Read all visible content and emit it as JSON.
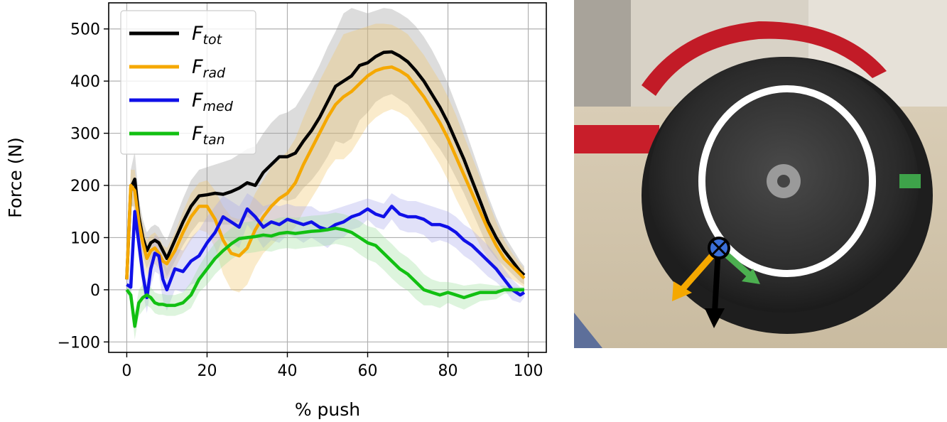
{
  "chart_data": {
    "type": "line",
    "title": "",
    "xlabel": "% push",
    "ylabel": "Force (N)",
    "xlim": [
      -4.5,
      104.5
    ],
    "ylim": [
      -120,
      550
    ],
    "xticks": [
      0,
      20,
      40,
      60,
      80,
      100
    ],
    "yticks": [
      -100,
      0,
      100,
      200,
      300,
      400,
      500
    ],
    "xtick_labels": [
      "0",
      "20",
      "40",
      "60",
      "80",
      "100"
    ],
    "ytick_labels": [
      "−100",
      "0",
      "100",
      "200",
      "300",
      "400",
      "500"
    ],
    "grid": true,
    "legend_position": "top-left",
    "series": [
      {
        "name": "F",
        "name_sub": "tot",
        "color": "#000000",
        "band_color": "#9a9a9a",
        "x": [
          0,
          1,
          2,
          3,
          4,
          5,
          6,
          7,
          8,
          9,
          10,
          12,
          14,
          16,
          18,
          20,
          22,
          24,
          26,
          28,
          30,
          32,
          34,
          36,
          38,
          40,
          42,
          44,
          46,
          48,
          50,
          52,
          54,
          56,
          58,
          60,
          62,
          64,
          66,
          68,
          70,
          72,
          74,
          76,
          78,
          80,
          82,
          84,
          86,
          88,
          90,
          92,
          94,
          96,
          98,
          99
        ],
        "y": [
          20,
          195,
          212,
          140,
          100,
          75,
          90,
          95,
          90,
          75,
          60,
          95,
          130,
          160,
          180,
          182,
          185,
          183,
          188,
          195,
          205,
          200,
          225,
          240,
          255,
          255,
          262,
          285,
          305,
          330,
          360,
          390,
          400,
          410,
          430,
          435,
          447,
          455,
          456,
          448,
          437,
          420,
          400,
          375,
          350,
          320,
          285,
          250,
          210,
          170,
          130,
          100,
          75,
          55,
          35,
          28
        ],
        "upper": [
          30,
          230,
          265,
          175,
          135,
          110,
          120,
          125,
          120,
          105,
          95,
          135,
          175,
          210,
          230,
          235,
          240,
          245,
          250,
          260,
          270,
          275,
          300,
          320,
          335,
          340,
          350,
          375,
          400,
          430,
          465,
          495,
          530,
          540,
          535,
          530,
          535,
          540,
          538,
          530,
          520,
          505,
          485,
          460,
          430,
          395,
          355,
          315,
          270,
          225,
          180,
          140,
          105,
          80,
          55,
          45
        ],
        "lower": [
          10,
          160,
          160,
          105,
          65,
          40,
          60,
          65,
          60,
          45,
          25,
          55,
          85,
          110,
          130,
          130,
          130,
          125,
          125,
          130,
          140,
          130,
          150,
          160,
          175,
          170,
          175,
          195,
          210,
          230,
          255,
          285,
          280,
          290,
          325,
          340,
          360,
          370,
          375,
          365,
          355,
          335,
          315,
          290,
          270,
          245,
          215,
          185,
          150,
          115,
          80,
          60,
          45,
          30,
          15,
          10
        ]
      },
      {
        "name": "F",
        "name_sub": "rad",
        "color": "#f5a800",
        "band_color": "#f2c66a",
        "x": [
          0,
          1,
          2,
          3,
          4,
          5,
          6,
          7,
          8,
          9,
          10,
          12,
          14,
          16,
          18,
          20,
          22,
          24,
          26,
          28,
          30,
          32,
          34,
          36,
          38,
          40,
          42,
          44,
          46,
          48,
          50,
          52,
          54,
          56,
          58,
          60,
          62,
          64,
          66,
          68,
          70,
          72,
          74,
          76,
          78,
          80,
          82,
          84,
          86,
          88,
          90,
          92,
          94,
          96,
          98,
          99
        ],
        "y": [
          20,
          200,
          190,
          130,
          90,
          60,
          75,
          80,
          70,
          55,
          50,
          75,
          110,
          140,
          160,
          160,
          135,
          95,
          70,
          65,
          80,
          115,
          140,
          160,
          175,
          185,
          205,
          240,
          270,
          300,
          330,
          355,
          370,
          380,
          395,
          410,
          420,
          425,
          427,
          420,
          410,
          390,
          370,
          345,
          320,
          290,
          255,
          220,
          185,
          150,
          115,
          85,
          60,
          45,
          30,
          22
        ],
        "upper": [
          30,
          230,
          230,
          165,
          125,
          95,
          105,
          110,
          100,
          85,
          80,
          110,
          150,
          185,
          205,
          210,
          190,
          160,
          140,
          135,
          150,
          185,
          210,
          235,
          250,
          265,
          290,
          330,
          365,
          400,
          430,
          460,
          490,
          495,
          500,
          505,
          510,
          510,
          508,
          500,
          490,
          470,
          450,
          425,
          400,
          370,
          335,
          295,
          255,
          215,
          170,
          130,
          95,
          70,
          50,
          40
        ],
        "lower": [
          10,
          170,
          150,
          95,
          55,
          25,
          45,
          50,
          40,
          25,
          20,
          40,
          70,
          95,
          115,
          110,
          80,
          30,
          0,
          -5,
          10,
          45,
          70,
          85,
          100,
          105,
          120,
          150,
          175,
          200,
          230,
          250,
          250,
          265,
          290,
          315,
          330,
          340,
          346,
          340,
          330,
          310,
          290,
          265,
          240,
          210,
          175,
          145,
          115,
          85,
          60,
          40,
          25,
          20,
          10,
          5
        ]
      },
      {
        "name": "F",
        "name_sub": "med",
        "color": "#1010e8",
        "band_color": "#a9a9ec",
        "x": [
          0,
          1,
          2,
          3,
          4,
          5,
          6,
          7,
          8,
          9,
          10,
          12,
          14,
          16,
          18,
          20,
          22,
          24,
          26,
          28,
          30,
          32,
          34,
          36,
          38,
          40,
          42,
          44,
          46,
          48,
          50,
          52,
          54,
          56,
          58,
          60,
          62,
          64,
          66,
          68,
          70,
          72,
          74,
          76,
          78,
          80,
          82,
          84,
          86,
          88,
          90,
          92,
          94,
          96,
          98,
          99
        ],
        "y": [
          10,
          5,
          150,
          90,
          30,
          -15,
          40,
          70,
          65,
          20,
          0,
          40,
          35,
          55,
          65,
          90,
          110,
          140,
          130,
          120,
          155,
          140,
          120,
          130,
          125,
          135,
          130,
          125,
          130,
          120,
          115,
          125,
          130,
          140,
          145,
          155,
          145,
          140,
          160,
          145,
          140,
          140,
          135,
          125,
          125,
          120,
          110,
          95,
          85,
          70,
          55,
          40,
          20,
          0,
          -10,
          -5
        ],
        "upper": [
          20,
          20,
          175,
          120,
          60,
          20,
          75,
          105,
          100,
          60,
          40,
          80,
          75,
          100,
          115,
          140,
          160,
          180,
          170,
          160,
          185,
          175,
          160,
          165,
          160,
          165,
          160,
          160,
          160,
          150,
          150,
          155,
          160,
          165,
          170,
          175,
          170,
          165,
          185,
          175,
          170,
          170,
          165,
          160,
          155,
          150,
          140,
          125,
          115,
          100,
          85,
          65,
          40,
          20,
          5,
          5
        ],
        "lower": [
          0,
          -10,
          125,
          60,
          0,
          -45,
          5,
          35,
          30,
          -20,
          -40,
          0,
          -5,
          10,
          15,
          40,
          60,
          100,
          90,
          80,
          125,
          105,
          80,
          95,
          90,
          105,
          100,
          90,
          100,
          90,
          80,
          95,
          100,
          115,
          120,
          135,
          120,
          115,
          135,
          115,
          110,
          110,
          105,
          90,
          95,
          90,
          80,
          65,
          55,
          40,
          25,
          15,
          0,
          -20,
          -25,
          -15
        ]
      },
      {
        "name": "F",
        "name_sub": "tan",
        "color": "#12c012",
        "band_color": "#9fe09f",
        "x": [
          0,
          1,
          2,
          3,
          4,
          5,
          6,
          7,
          8,
          9,
          10,
          12,
          14,
          16,
          18,
          20,
          22,
          24,
          26,
          28,
          30,
          32,
          34,
          36,
          38,
          40,
          42,
          44,
          46,
          48,
          50,
          52,
          54,
          56,
          58,
          60,
          62,
          64,
          66,
          68,
          70,
          72,
          74,
          76,
          78,
          80,
          82,
          84,
          86,
          88,
          90,
          92,
          94,
          96,
          98,
          99
        ],
        "y": [
          0,
          -10,
          -70,
          -25,
          -15,
          -10,
          -15,
          -25,
          -28,
          -28,
          -30,
          -30,
          -25,
          -10,
          20,
          40,
          60,
          75,
          88,
          98,
          100,
          102,
          105,
          103,
          108,
          110,
          108,
          110,
          112,
          113,
          115,
          118,
          115,
          110,
          100,
          90,
          85,
          70,
          55,
          40,
          30,
          15,
          0,
          -5,
          -10,
          -5,
          -10,
          -15,
          -10,
          -5,
          -5,
          -5,
          0,
          0,
          0,
          0
        ],
        "upper": [
          5,
          5,
          -45,
          0,
          10,
          10,
          5,
          -5,
          -8,
          -8,
          -10,
          -10,
          -5,
          15,
          45,
          70,
          90,
          105,
          118,
          128,
          130,
          132,
          135,
          133,
          138,
          140,
          138,
          140,
          142,
          143,
          145,
          148,
          145,
          140,
          132,
          122,
          118,
          102,
          88,
          72,
          62,
          48,
          30,
          20,
          15,
          15,
          12,
          8,
          10,
          12,
          10,
          8,
          8,
          6,
          5,
          5
        ],
        "lower": [
          -5,
          -25,
          -95,
          -50,
          -40,
          -30,
          -35,
          -45,
          -48,
          -48,
          -50,
          -50,
          -45,
          -35,
          -5,
          10,
          30,
          45,
          58,
          68,
          70,
          72,
          75,
          73,
          78,
          80,
          78,
          80,
          82,
          83,
          85,
          88,
          85,
          80,
          68,
          58,
          52,
          38,
          22,
          8,
          -2,
          -18,
          -30,
          -30,
          -35,
          -25,
          -32,
          -38,
          -30,
          -22,
          -20,
          -18,
          -8,
          -6,
          -5,
          -5
        ]
      }
    ]
  },
  "photo": {
    "arrow_colors": {
      "radial": "#f5a800",
      "vertical": "#000000",
      "tangential": "#4caf50"
    }
  }
}
